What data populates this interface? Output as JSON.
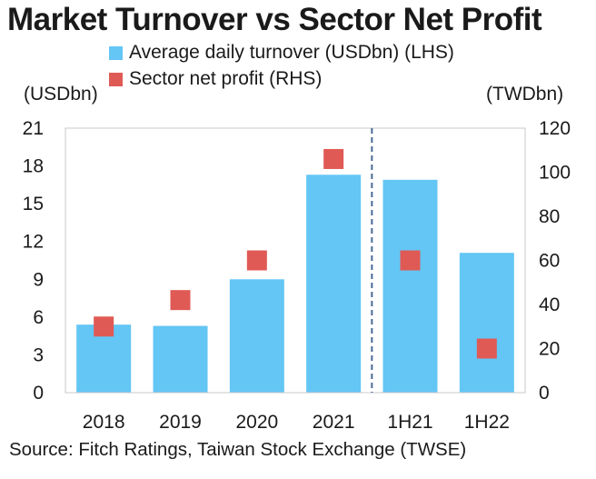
{
  "chart_data": {
    "type": "bar",
    "title": "Market Turnover vs Sector Net Profit",
    "categories": [
      "2018",
      "2019",
      "2020",
      "2021",
      "1H21",
      "1H22"
    ],
    "series": [
      {
        "name": "Average daily turnover (USDbn) (LHS)",
        "kind": "bar",
        "axis": "left",
        "color": "#63c6f5",
        "values": [
          5.4,
          5.3,
          9.0,
          17.3,
          16.9,
          11.1
        ]
      },
      {
        "name": "Sector net profit (RHS)",
        "kind": "marker",
        "axis": "right",
        "color": "#e05a55",
        "values": [
          30,
          42,
          60,
          106,
          60,
          20
        ]
      }
    ],
    "left_axis": {
      "label": "(USDbn)",
      "ylim": [
        0,
        21
      ],
      "ticks": [
        0,
        3,
        6,
        9,
        12,
        15,
        18,
        21
      ]
    },
    "right_axis": {
      "label": "(TWDbn)",
      "ylim": [
        0,
        120
      ],
      "ticks": [
        0,
        20,
        40,
        60,
        80,
        100,
        120
      ]
    },
    "divider_after_category": "2021",
    "source": "Source: Fitch Ratings, Taiwan Stock Exchange (TWSE)",
    "legend_position": "top"
  }
}
